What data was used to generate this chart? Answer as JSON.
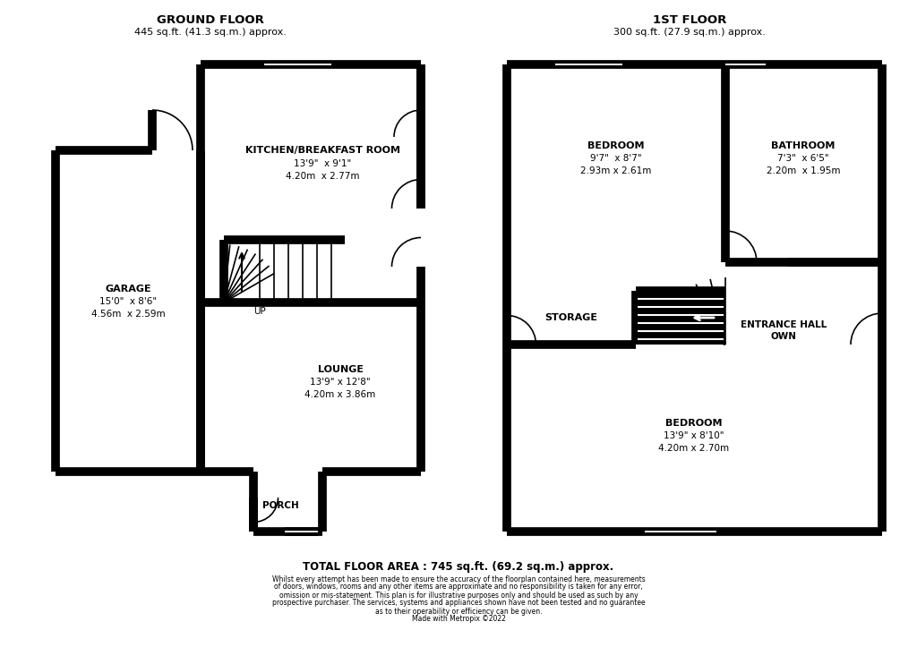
{
  "bg_color": "#ffffff",
  "ground_floor_title": "GROUND FLOOR",
  "ground_floor_subtitle": "445 sq.ft. (41.3 sq.m.) approx.",
  "first_floor_title": "1ST FLOOR",
  "first_floor_subtitle": "300 sq.ft. (27.9 sq.m.) approx.",
  "total_area": "TOTAL FLOOR AREA : 745 sq.ft. (69.2 sq.m.) approx.",
  "disclaimer_line1": "Whilst every attempt has been made to ensure the accuracy of the floorplan contained here, measurements",
  "disclaimer_line2": "of doors, windows, rooms and any other items are approximate and no responsibility is taken for any error,",
  "disclaimer_line3": "omission or mis-statement. This plan is for illustrative purposes only and should be used as such by any",
  "disclaimer_line4": "prospective purchaser. The services, systems and appliances shown have not been tested and no guarantee",
  "disclaimer_line5": "as to their operability or efficiency can be given.",
  "disclaimer_line6": "Made with Metropix ©2022",
  "kitchen_label": "KITCHEN/BREAKFAST ROOM",
  "kitchen_dim1": "13'9\"  x 9'1\"",
  "kitchen_dim2": "4.20m  x 2.77m",
  "lounge_label": "LOUNGE",
  "lounge_dim1": "13'9\" x 12'8\"",
  "lounge_dim2": "4.20m x 3.86m",
  "garage_label": "GARAGE",
  "garage_dim1": "15'0\"  x 8'6\"",
  "garage_dim2": "4.56m  x 2.59m",
  "porch_label": "PORCH",
  "up_label": "UP",
  "bedroom1_label": "BEDROOM",
  "bedroom1_dim1": "9'7\"  x 8'7\"",
  "bedroom1_dim2": "2.93m x 2.61m",
  "bathroom_label": "BATHROOM",
  "bathroom_dim1": "7'3\"  x 6'5\"",
  "bathroom_dim2": "2.20m  x 1.95m",
  "storage_label": "STORAGE",
  "entrance_label": "ENTRANCE HALL",
  "own_label": "OWN",
  "bedroom2_label": "BEDROOM",
  "bedroom2_dim1": "13'9\" x 8'10\"",
  "bedroom2_dim2": "4.20m x 2.70m"
}
